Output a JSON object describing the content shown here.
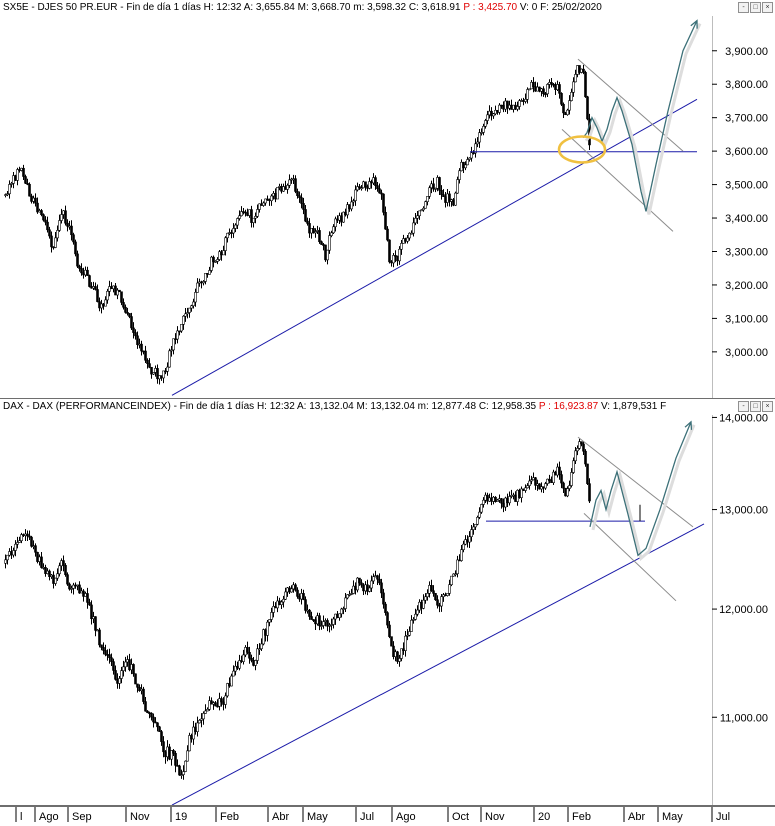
{
  "top_panel": {
    "symbol": "SX5E",
    "header": [
      {
        "k": "name",
        "text": "SX5E - DJES 50 PR.EUR - Fin de día 1 días"
      },
      {
        "k": "time",
        "text": "H: 12:32"
      },
      {
        "k": "open",
        "text": "A: 3,655.84"
      },
      {
        "k": "high",
        "text": "M: 3,668.70"
      },
      {
        "k": "low",
        "text": "m: 3,598.32"
      },
      {
        "k": "close",
        "text": "C: 3,618.91"
      },
      {
        "k": "p",
        "text": "P : 3,425.70",
        "red": true
      },
      {
        "k": "v",
        "text": "V: 0"
      },
      {
        "k": "f",
        "text": "F: 25/02/2020"
      }
    ]
  },
  "bottom_panel": {
    "symbol": "DAX",
    "header": [
      {
        "k": "name",
        "text": "DAX - DAX (PERFORMANCEINDEX) - Fin de día 1 días"
      },
      {
        "k": "time",
        "text": "H: 12:32"
      },
      {
        "k": "open",
        "text": "A: 13,132.04"
      },
      {
        "k": "high",
        "text": "M: 13,132.04"
      },
      {
        "k": "low",
        "text": "m: 12,877.48"
      },
      {
        "k": "close",
        "text": "C: 12,958.35"
      },
      {
        "k": "p",
        "text": "P : 16,923.87",
        "red": true
      },
      {
        "k": "v",
        "text": "V: 1,879,531"
      },
      {
        "k": "f",
        "text": "F"
      }
    ]
  },
  "buttons": [
    "-",
    "□",
    "×"
  ],
  "colors": {
    "candles": "#000000",
    "trendline": "#1a1aa8",
    "channel": "#8c8c8c",
    "projection": "#3c7078",
    "highlight": "#f0c040",
    "price_p": "#e00000"
  },
  "chart_data": [
    {
      "type": "candlestick",
      "name": "SX5E",
      "ylim": [
        2880,
        3980
      ],
      "yticks": [
        "3,900.00",
        "3,800.00",
        "3,700.00",
        "3,600.00",
        "3,500.00",
        "3,400.00",
        "3,300.00",
        "3,200.00",
        "3,100.00",
        "3,000.00"
      ],
      "ytick_values": [
        3900,
        3800,
        3700,
        3600,
        3500,
        3400,
        3300,
        3200,
        3100,
        3000
      ],
      "xlabels": [
        "l",
        "Ago",
        "Sep",
        "Nov",
        "19",
        "Feb",
        "Abr",
        "May",
        "Jul",
        "Ago",
        "Oct",
        "Nov",
        "20",
        "Feb",
        "Abr",
        "May",
        "Jul"
      ],
      "path_anchors": [
        [
          0,
          3470
        ],
        [
          8,
          3520
        ],
        [
          16,
          3540
        ],
        [
          24,
          3470
        ],
        [
          32,
          3430
        ],
        [
          40,
          3380
        ],
        [
          48,
          3300
        ],
        [
          56,
          3420
        ],
        [
          64,
          3380
        ],
        [
          72,
          3270
        ],
        [
          80,
          3230
        ],
        [
          88,
          3190
        ],
        [
          96,
          3130
        ],
        [
          104,
          3200
        ],
        [
          112,
          3180
        ],
        [
          120,
          3120
        ],
        [
          128,
          3060
        ],
        [
          136,
          3010
        ],
        [
          144,
          2950
        ],
        [
          152,
          2930
        ],
        [
          160,
          2940
        ],
        [
          168,
          3040
        ],
        [
          176,
          3080
        ],
        [
          184,
          3130
        ],
        [
          192,
          3190
        ],
        [
          200,
          3230
        ],
        [
          208,
          3280
        ],
        [
          216,
          3300
        ],
        [
          224,
          3360
        ],
        [
          232,
          3400
        ],
        [
          240,
          3430
        ],
        [
          248,
          3390
        ],
        [
          256,
          3440
        ],
        [
          264,
          3450
        ],
        [
          272,
          3480
        ],
        [
          280,
          3500
        ],
        [
          288,
          3510
        ],
        [
          296,
          3440
        ],
        [
          304,
          3360
        ],
        [
          312,
          3360
        ],
        [
          320,
          3290
        ],
        [
          328,
          3380
        ],
        [
          336,
          3400
        ],
        [
          344,
          3440
        ],
        [
          352,
          3480
        ],
        [
          360,
          3500
        ],
        [
          368,
          3510
        ],
        [
          376,
          3480
        ],
        [
          384,
          3280
        ],
        [
          392,
          3280
        ],
        [
          400,
          3340
        ],
        [
          408,
          3380
        ],
        [
          416,
          3430
        ],
        [
          424,
          3480
        ],
        [
          432,
          3510
        ],
        [
          440,
          3460
        ],
        [
          448,
          3450
        ],
        [
          456,
          3560
        ],
        [
          464,
          3580
        ],
        [
          472,
          3640
        ],
        [
          480,
          3700
        ],
        [
          488,
          3710
        ],
        [
          496,
          3730
        ],
        [
          504,
          3740
        ],
        [
          512,
          3740
        ],
        [
          520,
          3770
        ],
        [
          528,
          3800
        ],
        [
          536,
          3780
        ],
        [
          544,
          3790
        ],
        [
          552,
          3790
        ],
        [
          560,
          3700
        ],
        [
          566,
          3780
        ],
        [
          572,
          3850
        ],
        [
          578,
          3820
        ],
        [
          584,
          3618
        ]
      ],
      "ticker_bands": 72,
      "trendline": [
        [
          172,
          2870
        ],
        [
          697,
          3755
        ]
      ],
      "support": [
        [
          470,
          3598
        ],
        [
          697,
          3598
        ]
      ],
      "channel_upper": [
        [
          578,
          3875
        ],
        [
          683,
          3600
        ]
      ],
      "channel_lower": [
        [
          562,
          3665
        ],
        [
          673,
          3360
        ]
      ],
      "projection": [
        [
          583,
          3640
        ],
        [
          587,
          3655
        ],
        [
          592,
          3700
        ],
        [
          597,
          3670
        ],
        [
          602,
          3630
        ],
        [
          607,
          3665
        ],
        [
          612,
          3720
        ],
        [
          617,
          3760
        ],
        [
          622,
          3720
        ],
        [
          632,
          3620
        ],
        [
          641,
          3480
        ],
        [
          646,
          3420
        ],
        [
          656,
          3560
        ],
        [
          668,
          3720
        ],
        [
          683,
          3900
        ],
        [
          697,
          3990
        ]
      ],
      "highlight_center": [
        582,
        3605
      ]
    },
    {
      "type": "candlestick",
      "name": "DAX",
      "ylim": [
        10300,
        14050
      ],
      "log_scale": true,
      "yticks": [
        "14,000.00",
        "13,000.00",
        "12,000.00",
        "11,000.00"
      ],
      "ytick_values": [
        14000,
        13000,
        12000,
        11000
      ],
      "xlabels": [
        "l",
        "Ago",
        "Sep",
        "Nov",
        "19",
        "Feb",
        "Abr",
        "May",
        "Jul",
        "Ago",
        "Oct",
        "Nov",
        "20",
        "Feb",
        "Abr",
        "May",
        "Jul"
      ],
      "path_anchors": [
        [
          0,
          12450
        ],
        [
          8,
          12600
        ],
        [
          16,
          12750
        ],
        [
          24,
          12680
        ],
        [
          32,
          12500
        ],
        [
          40,
          12380
        ],
        [
          48,
          12250
        ],
        [
          56,
          12450
        ],
        [
          64,
          12180
        ],
        [
          72,
          12200
        ],
        [
          80,
          12100
        ],
        [
          88,
          11900
        ],
        [
          96,
          11600
        ],
        [
          104,
          11500
        ],
        [
          112,
          11300
        ],
        [
          120,
          11500
        ],
        [
          128,
          11400
        ],
        [
          136,
          11200
        ],
        [
          144,
          11000
        ],
        [
          152,
          10900
        ],
        [
          160,
          10700
        ],
        [
          168,
          10650
        ],
        [
          176,
          10500
        ],
        [
          184,
          10800
        ],
        [
          192,
          10950
        ],
        [
          200,
          11100
        ],
        [
          208,
          11150
        ],
        [
          216,
          11100
        ],
        [
          224,
          11300
        ],
        [
          232,
          11450
        ],
        [
          240,
          11600
        ],
        [
          248,
          11500
        ],
        [
          256,
          11700
        ],
        [
          264,
          11900
        ],
        [
          272,
          12050
        ],
        [
          280,
          12150
        ],
        [
          288,
          12200
        ],
        [
          296,
          12100
        ],
        [
          304,
          11900
        ],
        [
          312,
          11900
        ],
        [
          320,
          11850
        ],
        [
          328,
          11900
        ],
        [
          336,
          12000
        ],
        [
          344,
          12150
        ],
        [
          352,
          12250
        ],
        [
          360,
          12200
        ],
        [
          368,
          12300
        ],
        [
          376,
          12200
        ],
        [
          384,
          11700
        ],
        [
          392,
          11500
        ],
        [
          400,
          11700
        ],
        [
          408,
          11900
        ],
        [
          416,
          12050
        ],
        [
          424,
          12250
        ],
        [
          432,
          12000
        ],
        [
          440,
          12150
        ],
        [
          448,
          12350
        ],
        [
          456,
          12550
        ],
        [
          464,
          12750
        ],
        [
          472,
          12950
        ],
        [
          480,
          13150
        ],
        [
          488,
          13100
        ],
        [
          496,
          13050
        ],
        [
          504,
          13100
        ],
        [
          512,
          13150
        ],
        [
          520,
          13200
        ],
        [
          528,
          13300
        ],
        [
          536,
          13200
        ],
        [
          544,
          13300
        ],
        [
          552,
          13450
        ],
        [
          560,
          13150
        ],
        [
          566,
          13350
        ],
        [
          572,
          13700
        ],
        [
          578,
          13650
        ],
        [
          582,
          13300
        ],
        [
          585,
          12958
        ]
      ],
      "ticker_bands": 72,
      "trendline": [
        [
          172,
          10250
        ],
        [
          704,
          12850
        ]
      ],
      "support": [
        [
          486,
          12880
        ],
        [
          645,
          12880
        ]
      ],
      "channel_upper": [
        [
          578,
          13780
        ],
        [
          693,
          12820
        ]
      ],
      "channel_lower": [
        [
          584,
          12960
        ],
        [
          676,
          12080
        ]
      ],
      "projection": [
        [
          590,
          12820
        ],
        [
          596,
          13100
        ],
        [
          601,
          13200
        ],
        [
          606,
          13000
        ],
        [
          611,
          13200
        ],
        [
          617,
          13400
        ],
        [
          628,
          12950
        ],
        [
          638,
          12530
        ],
        [
          646,
          12600
        ],
        [
          660,
          13000
        ],
        [
          676,
          13550
        ],
        [
          691,
          13950
        ]
      ],
      "vline_x": 640
    }
  ]
}
